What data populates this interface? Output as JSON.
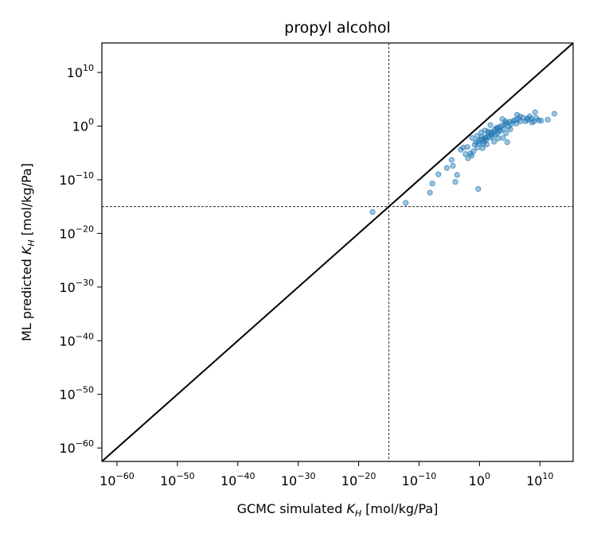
{
  "chart_data": {
    "type": "scatter",
    "title": "propyl alcohol",
    "xlabel": {
      "prefix": "GCMC simulated ",
      "symbol": "K",
      "subscript": "H",
      "unit": " [mol/kg/Pa]"
    },
    "ylabel": {
      "prefix": "ML predicted ",
      "symbol": "K",
      "subscript": "H",
      "unit": " [mol/kg/Pa]"
    },
    "xscale": "log",
    "yscale": "log",
    "xlim_exp": [
      -62.5,
      15.5
    ],
    "ylim_exp": [
      -62.5,
      15.5
    ],
    "tick_exponents": [
      -60,
      -50,
      -40,
      -30,
      -20,
      -10,
      0,
      10
    ],
    "tick_base": "10",
    "reference_line": "y = x",
    "threshold_lines_exp": {
      "x": -15,
      "y": -15
    },
    "point_color": "#1f77b4",
    "point_alpha": 0.45,
    "grid": false,
    "points_log10": [
      [
        -17.7,
        -16.0
      ],
      [
        -12.2,
        -14.3
      ],
      [
        -8.2,
        -12.4
      ],
      [
        -7.8,
        -10.7
      ],
      [
        -6.8,
        -9.0
      ],
      [
        -5.4,
        -7.8
      ],
      [
        -4.0,
        -10.4
      ],
      [
        -3.7,
        -9.1
      ],
      [
        -4.4,
        -7.4
      ],
      [
        -2.3,
        -5.2
      ],
      [
        -1.9,
        -6.0
      ],
      [
        -1.5,
        -5.1
      ],
      [
        -1.0,
        -4.7
      ],
      [
        -0.8,
        -3.5
      ],
      [
        -0.6,
        -3.0
      ],
      [
        -0.3,
        -4.0
      ],
      [
        -0.2,
        -2.8
      ],
      [
        0.0,
        -3.2
      ],
      [
        0.2,
        -2.5
      ],
      [
        0.4,
        -2.0
      ],
      [
        0.6,
        -3.3
      ],
      [
        0.8,
        -2.8
      ],
      [
        1.0,
        -2.2
      ],
      [
        1.1,
        -2.6
      ],
      [
        1.3,
        -1.9
      ],
      [
        1.5,
        -1.4
      ],
      [
        1.7,
        -2.1
      ],
      [
        1.9,
        -1.1
      ],
      [
        2.1,
        -2.0
      ],
      [
        2.3,
        -1.2
      ],
      [
        2.5,
        -0.7
      ],
      [
        2.6,
        -1.6
      ],
      [
        2.8,
        -0.4
      ],
      [
        3.0,
        -1.3
      ],
      [
        3.2,
        -0.8
      ],
      [
        3.3,
        -0.2
      ],
      [
        3.5,
        -0.9
      ],
      [
        3.7,
        0.1
      ],
      [
        4.0,
        -0.5
      ],
      [
        4.2,
        0.3
      ],
      [
        4.5,
        0.6
      ],
      [
        4.8,
        -0.1
      ],
      [
        5.0,
        0.8
      ],
      [
        5.3,
        0.4
      ],
      [
        5.6,
        1.0
      ],
      [
        5.9,
        1.1
      ],
      [
        6.1,
        0.5
      ],
      [
        6.4,
        1.3
      ],
      [
        6.8,
        0.9
      ],
      [
        7.2,
        1.6
      ],
      [
        7.6,
        0.9
      ],
      [
        8.0,
        1.2
      ],
      [
        8.3,
        1.8
      ],
      [
        8.6,
        1.4
      ],
      [
        9.0,
        0.9
      ],
      [
        9.4,
        1.5
      ],
      [
        9.8,
        1.1
      ],
      [
        1.2,
        -3.4
      ],
      [
        0.7,
        -2.4
      ],
      [
        2.0,
        -1.5
      ],
      [
        3.1,
        -2.3
      ],
      [
        4.4,
        -1.3
      ],
      [
        -1.2,
        -2.2
      ],
      [
        -0.4,
        -1.8
      ],
      [
        0.9,
        -0.8
      ],
      [
        2.4,
        -2.9
      ],
      [
        1.8,
        0.2
      ],
      [
        3.8,
        1.3
      ],
      [
        -2.7,
        -4.0
      ],
      [
        -0.2,
        -11.7
      ],
      [
        -2.0,
        -3.9
      ],
      [
        4.6,
        -3.0
      ],
      [
        3.9,
        -2.2
      ],
      [
        0.3,
        -1.2
      ],
      [
        6.7,
        1.8
      ],
      [
        9.2,
        2.6
      ],
      [
        10.2,
        1.0
      ],
      [
        12.4,
        2.3
      ],
      [
        11.3,
        1.2
      ],
      [
        -1.3,
        -5.5
      ],
      [
        -3.1,
        -4.4
      ],
      [
        -4.6,
        -6.3
      ],
      [
        0.5,
        -4.1
      ],
      [
        2.9,
        -0.3
      ],
      [
        5.1,
        -0.6
      ],
      [
        7.9,
        1.4
      ],
      [
        6.2,
        2.1
      ],
      [
        4.3,
        0.9
      ],
      [
        1.4,
        -1.0
      ],
      [
        8.7,
        0.7
      ]
    ]
  }
}
